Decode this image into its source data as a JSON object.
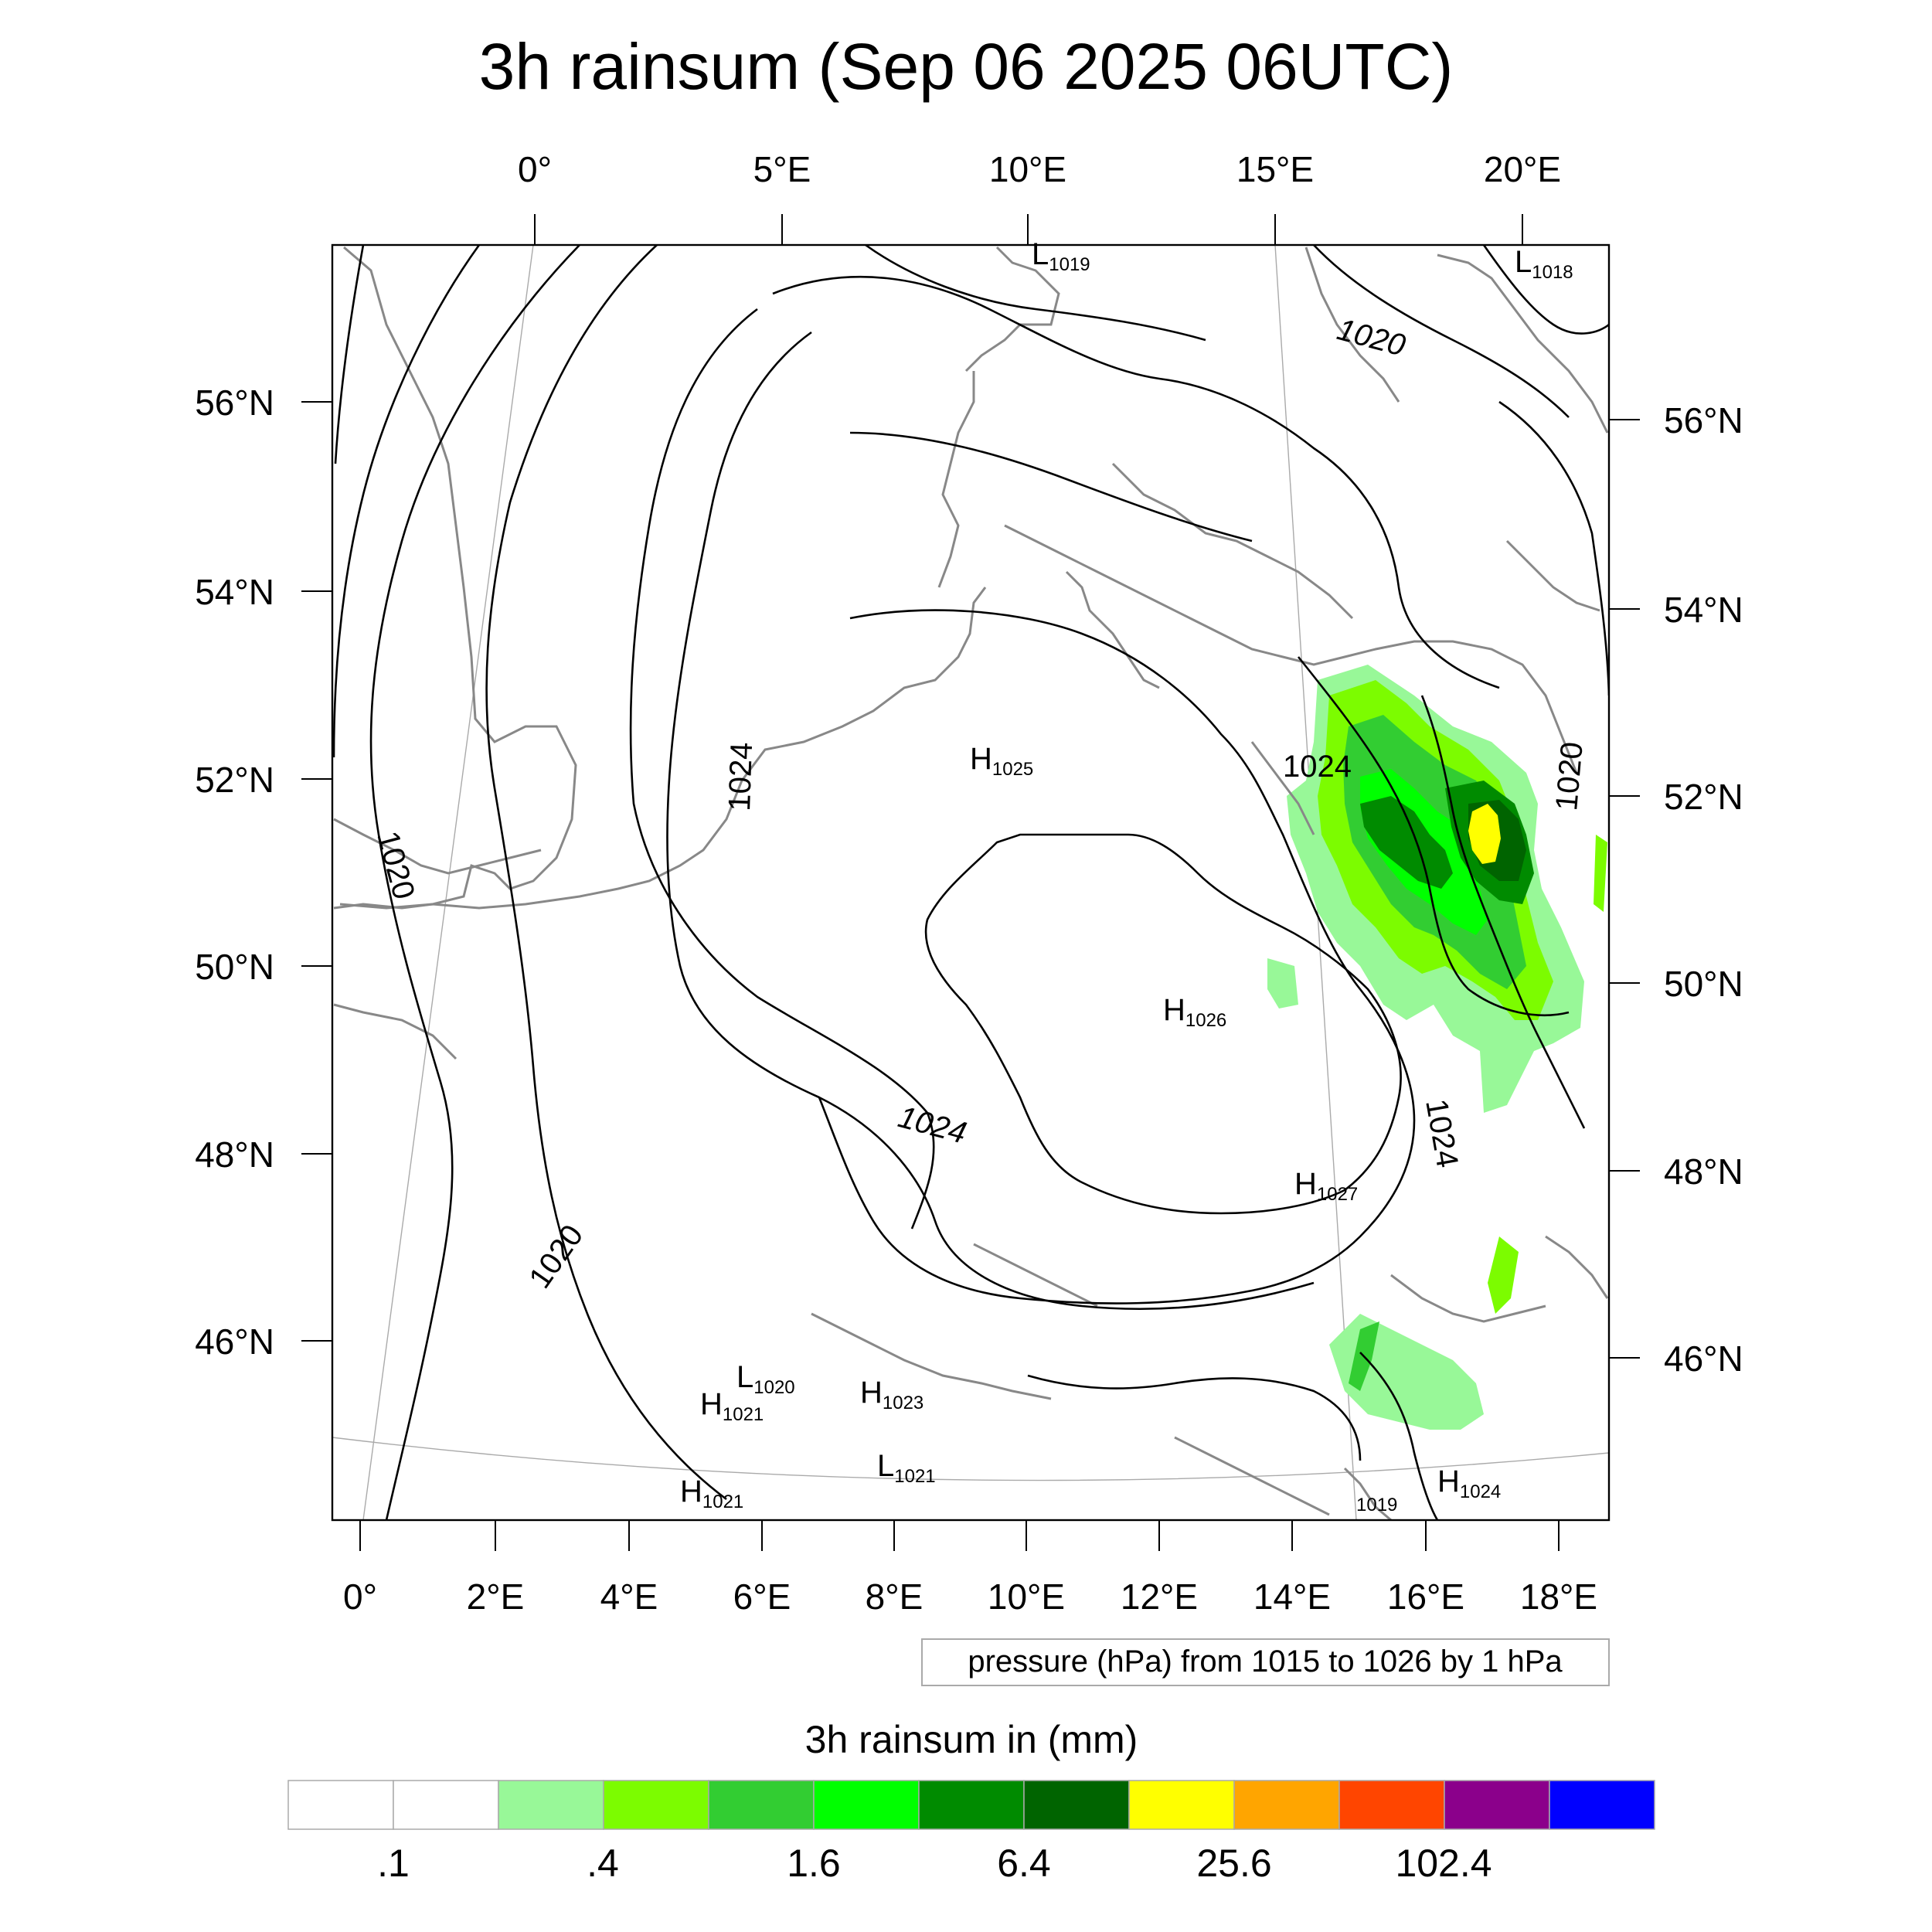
{
  "title": "3h rainsum (Sep 06 2025 06UTC)",
  "top_lon_labels": [
    "0°",
    "5°E",
    "10°E",
    "15°E",
    "20°E"
  ],
  "bottom_lon_labels": [
    "0°",
    "2°E",
    "4°E",
    "6°E",
    "8°E",
    "10°E",
    "12°E",
    "14°E",
    "16°E",
    "18°E"
  ],
  "left_lat_labels": [
    "56°N",
    "54°N",
    "52°N",
    "50°N",
    "48°N",
    "46°N"
  ],
  "right_lat_labels": [
    "56°N",
    "54°N",
    "52°N",
    "50°N",
    "48°N",
    "46°N"
  ],
  "contour_labels": [
    "1020",
    "1020",
    "1024",
    "1024",
    "1024",
    "1020",
    "1020",
    "1024"
  ],
  "pressure_centers": [
    {
      "letter": "L",
      "value": "1019"
    },
    {
      "letter": "L",
      "value": "1018"
    },
    {
      "letter": "H",
      "value": "1025"
    },
    {
      "letter": "H",
      "value": "1026"
    },
    {
      "letter": "H",
      "value": "1027"
    },
    {
      "letter": "L",
      "value": "1020"
    },
    {
      "letter": "H",
      "value": "1021"
    },
    {
      "letter": "H",
      "value": "1023"
    },
    {
      "letter": "L",
      "value": "1021"
    },
    {
      "letter": "H",
      "value": "1021"
    },
    {
      "letter": "H",
      "value": "1024"
    },
    {
      "letter": "",
      "value": "1019"
    }
  ],
  "pressure_note": "pressure (hPa) from 1015 to 1026 by 1 hPa",
  "legend": {
    "title": "3h rainsum in (mm)",
    "colors": [
      "#ffffff",
      "#ffffff",
      "#98f898",
      "#7cfc00",
      "#32cd32",
      "#00ff00",
      "#008b00",
      "#006400",
      "#ffff00",
      "#ffa500",
      "#ff4500",
      "#8b008b",
      "#0000ff"
    ],
    "tick_labels": [
      ".1",
      ".4",
      "1.6",
      "6.4",
      "25.6",
      "102.4"
    ]
  }
}
